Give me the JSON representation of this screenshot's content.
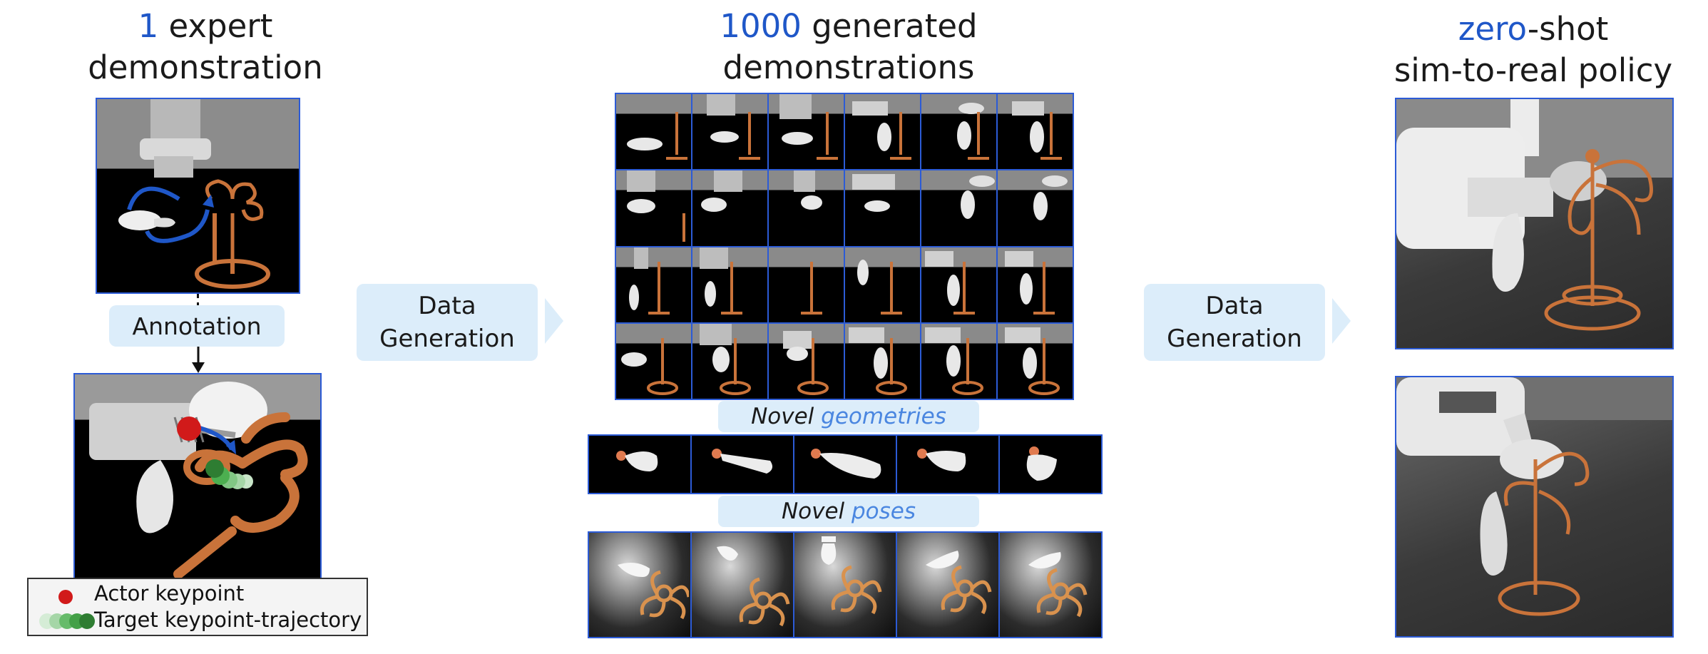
{
  "titles": {
    "left": {
      "highlight": "1",
      "rest": " expert",
      "line2": "demonstration"
    },
    "middle": {
      "highlight": "1000",
      "rest": " generated",
      "line2": "demonstrations"
    },
    "right": {
      "highlight": "zero",
      "rest": "-shot",
      "line2": "sim-to-real policy"
    }
  },
  "labels": {
    "annotation": "Annotation",
    "data_generation_1": {
      "line1": "Data",
      "line2": "Generation"
    },
    "data_generation_2": {
      "line1": "Data",
      "line2": "Generation"
    },
    "novel_geometries": {
      "prefix": "Novel ",
      "highlight": "geometries"
    },
    "novel_poses": {
      "prefix": "Novel ",
      "highlight": "poses"
    }
  },
  "legend": {
    "actor": "Actor keypoint",
    "target": "Target keypoint-trajectory"
  },
  "colors": {
    "accent_blue": "#1f57c8",
    "light_blue": "#4a86e0",
    "panel_border": "#2c5bd6",
    "tag_bg": "#dcedfa",
    "actor_red": "#d11a1a",
    "target_green": "#2e7d32",
    "rack_copper": "#c9733a"
  },
  "icons": [
    "down-arrow-icon",
    "right-chevron-icon",
    "red-dot-icon",
    "green-trail-icon"
  ]
}
